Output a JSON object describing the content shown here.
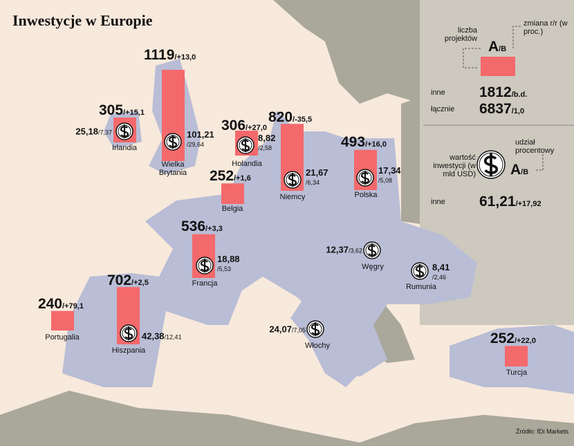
{
  "title": "Inwestycje w Europie",
  "countries": [
    {
      "name": "Irlandia",
      "projects": 305,
      "change": "/+15,1",
      "value": "25,18",
      "share": "/7,37"
    },
    {
      "name": "Wielka Brytania",
      "projects": 1119,
      "change": "/+13,0",
      "value": "101,21",
      "share": "/29,64"
    },
    {
      "name": "Holandia",
      "projects": 306,
      "change": "/+27,0",
      "value": "8,82",
      "share": "/2,58"
    },
    {
      "name": "Belgia",
      "projects": 252,
      "change": "/+1,6"
    },
    {
      "name": "Niemcy",
      "projects": 820,
      "change": "/-35,5",
      "value": "21,67",
      "share": "/6,34"
    },
    {
      "name": "Polska",
      "projects": 493,
      "change": "/+16,0",
      "value": "17,34",
      "share": "/5,08"
    },
    {
      "name": "Francja",
      "projects": 536,
      "change": "/+3,3",
      "value": "18,88",
      "share": "/5,53"
    },
    {
      "name": "Hiszpania",
      "projects": 702,
      "change": "/+2,5",
      "value": "42,38",
      "share": "/12,41"
    },
    {
      "name": "Portugalia",
      "projects": 240,
      "change": "/+79,1"
    },
    {
      "name": "Węgry",
      "value": "12,37",
      "share": "/3,62"
    },
    {
      "name": "Rumunia",
      "value": "8,41",
      "share": "/2,46"
    },
    {
      "name": "Włochy",
      "value": "24,07",
      "share": "/7,05"
    },
    {
      "name": "Turcja",
      "projects": 252,
      "change": "/+22,0"
    }
  ],
  "legend": {
    "change_label": "zmiana r/r (w proc.)",
    "projects_label": "liczba projektów",
    "a": "A",
    "b": "/B",
    "other_projects": {
      "label": "inne",
      "value": "1812",
      "change": "/b.d."
    },
    "total": {
      "label": "łącznie",
      "value": "6837",
      "change": "/1,0"
    },
    "value_label": "wartość inwestycji (w mld USD)",
    "share_label": "udział procentowy",
    "a2": "A",
    "b2": "/B",
    "other_value": {
      "label": "inne",
      "value": "61,21",
      "share": "/+17,92"
    }
  },
  "source": "Źródło: fDi Markets"
}
